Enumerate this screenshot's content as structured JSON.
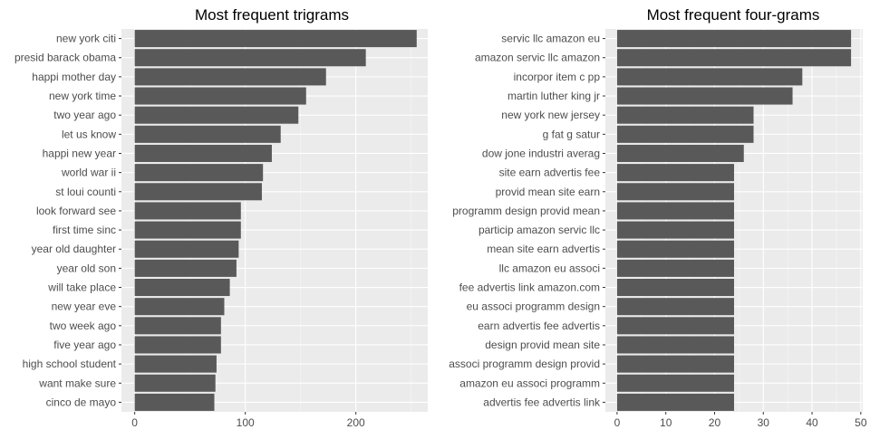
{
  "colors": {
    "panel_bg": "#ebebeb",
    "grid_major": "#ffffff",
    "bar": "#595959",
    "text": "#4d4d4d"
  },
  "chart_data": [
    {
      "type": "bar",
      "orientation": "horizontal",
      "title": "Most frequent trigrams",
      "xlabel": "",
      "ylabel": "",
      "xlim": [
        -12,
        265
      ],
      "xticks": [
        0,
        100,
        200
      ],
      "grid": true,
      "categories": [
        "new york citi",
        "presid barack obama",
        "happi mother day",
        "new york time",
        "two year ago",
        "let us know",
        "happi new year",
        "world war ii",
        "st loui counti",
        "look forward see",
        "first time sinc",
        "year old daughter",
        "year old son",
        "will take place",
        "new year eve",
        "two week ago",
        "five year ago",
        "high school student",
        "want make sure",
        "cinco de mayo"
      ],
      "values": [
        255,
        209,
        173,
        155,
        148,
        132,
        124,
        116,
        115,
        96,
        96,
        94,
        92,
        86,
        81,
        78,
        78,
        74,
        73,
        72
      ]
    },
    {
      "type": "bar",
      "orientation": "horizontal",
      "title": "Most frequent four-grams",
      "xlabel": "",
      "ylabel": "",
      "xlim": [
        -2.4,
        50.4
      ],
      "xticks": [
        0,
        10,
        20,
        30,
        40,
        50
      ],
      "grid": true,
      "categories": [
        "servic llc amazon eu",
        "amazon servic llc amazon",
        "incorpor item c pp",
        "martin luther king jr",
        "new york new jersey",
        "g fat g satur",
        "dow jone industri averag",
        "site earn advertis fee",
        "provid mean site earn",
        "programm design provid mean",
        "particip amazon servic llc",
        "mean site earn advertis",
        "llc amazon eu associ",
        "fee advertis link amazon.com",
        "eu associ programm design",
        "earn advertis fee advertis",
        "design provid mean site",
        "associ programm design provid",
        "amazon eu associ programm",
        "advertis fee advertis link"
      ],
      "values": [
        48,
        48,
        38,
        36,
        28,
        28,
        26,
        24,
        24,
        24,
        24,
        24,
        24,
        24,
        24,
        24,
        24,
        24,
        24,
        24
      ]
    }
  ]
}
